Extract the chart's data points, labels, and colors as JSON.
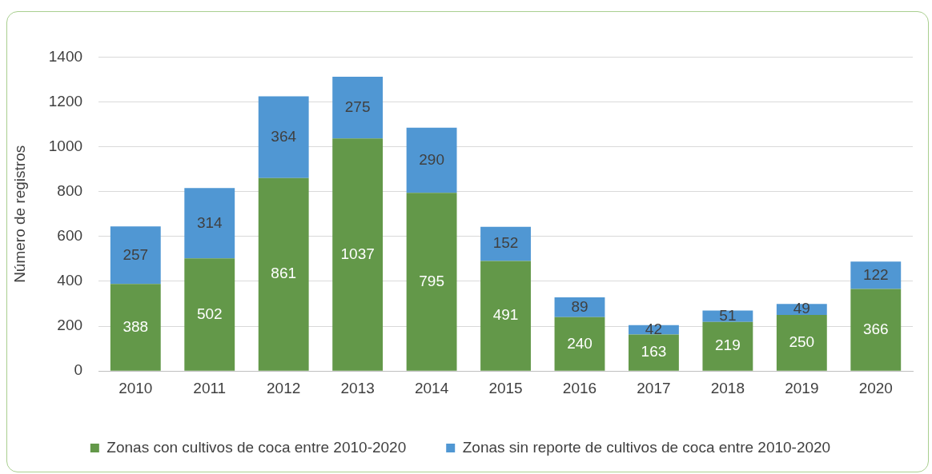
{
  "chart_data": {
    "type": "bar",
    "ylabel": "Número de registros",
    "categories": [
      "2010",
      "2011",
      "2012",
      "2013",
      "2014",
      "2015",
      "2016",
      "2017",
      "2018",
      "2019",
      "2020"
    ],
    "series": [
      {
        "name": "Zonas con cultivos de coca entre 2010-2020",
        "color": "#639849",
        "values": [
          388,
          502,
          861,
          1037,
          795,
          491,
          240,
          163,
          219,
          250,
          366
        ]
      },
      {
        "name": "Zonas sin reporte de cultivos de coca entre 2010-2020",
        "color": "#5097d3",
        "values": [
          257,
          314,
          364,
          275,
          290,
          152,
          89,
          42,
          51,
          49,
          122
        ]
      }
    ],
    "stacked": true,
    "ylim": [
      0,
      1400
    ],
    "yticks": [
      0,
      200,
      400,
      600,
      800,
      1000,
      1200,
      1400
    ],
    "grid": "y",
    "legend": "bottom",
    "data_labels": true
  }
}
